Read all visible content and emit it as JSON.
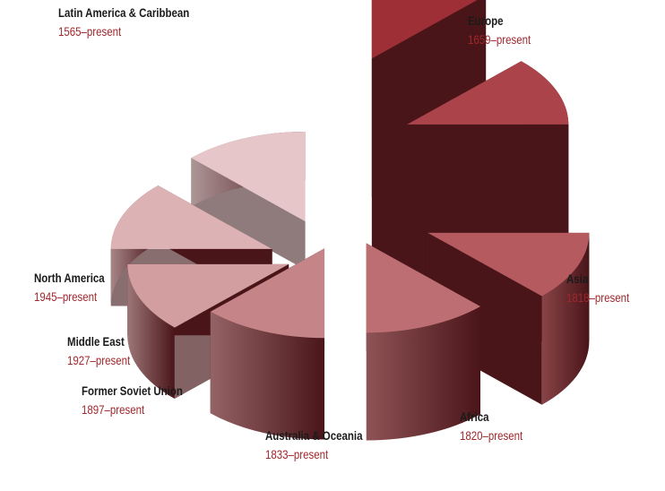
{
  "chart_data": {
    "type": "pie",
    "style": "exploded-3d-variable-height",
    "slices": [
      {
        "label": "Latin America & Caribbean",
        "period": "1565–present",
        "start_year": 1565,
        "color": "#9e2f36"
      },
      {
        "label": "Europe",
        "period": "1659–present",
        "start_year": 1659,
        "color": "#ab444a"
      },
      {
        "label": "Asia",
        "period": "1818–present",
        "start_year": 1818,
        "color": "#b55a5e"
      },
      {
        "label": "Africa",
        "period": "1820–present",
        "start_year": 1820,
        "color": "#bd6e72"
      },
      {
        "label": "Australia & Oceania",
        "period": "1833–present",
        "start_year": 1833,
        "color": "#c58487"
      },
      {
        "label": "Former Soviet Union",
        "period": "1897–present",
        "start_year": 1897,
        "color": "#d29ea0"
      },
      {
        "label": "Middle East",
        "period": "1927–present",
        "start_year": 1927,
        "color": "#ddb2b4"
      },
      {
        "label": "North America",
        "period": "1945–present",
        "start_year": 1945,
        "color": "#e6c6c8"
      }
    ],
    "colors": {
      "side_dark": "#4a1519",
      "year_text": "#a0282d",
      "name_text": "#1a1a1a"
    }
  }
}
